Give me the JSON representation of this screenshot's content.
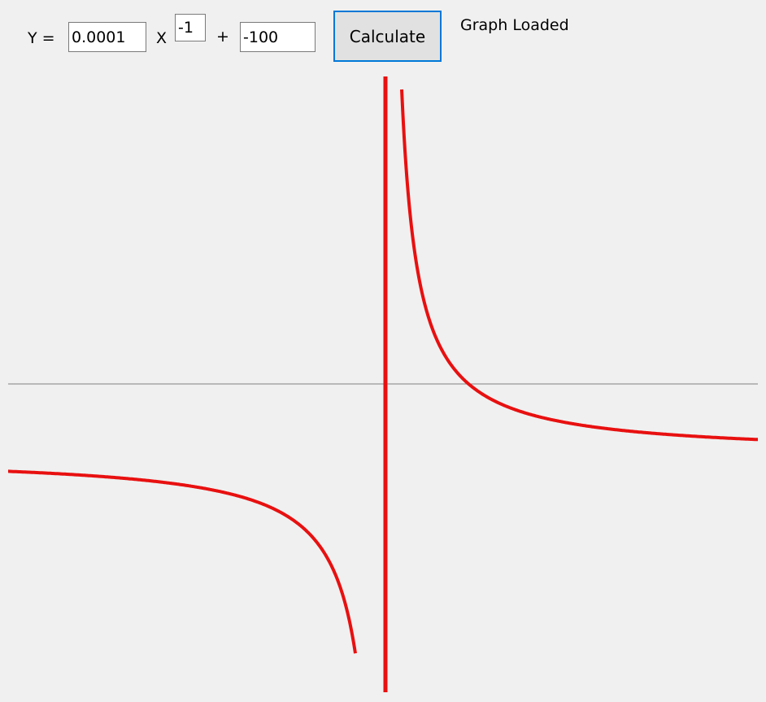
{
  "equation": {
    "y_label": "Y  =",
    "coefficient": "0.0001",
    "x_label": "X",
    "exponent": "-1",
    "plus_label": "+",
    "constant": "-100"
  },
  "toolbar": {
    "calculate_label": "Calculate"
  },
  "status": {
    "text": "Graph Loaded"
  },
  "colors": {
    "curve": "#e81010",
    "axis": "#808080",
    "background": "#f0f0f0",
    "button_border": "#0078d7"
  },
  "chart_data": {
    "type": "line",
    "function": "y = 0.0001 * x^-1 + -100",
    "asymptote_x": 0,
    "grid": false,
    "legend": "none"
  }
}
